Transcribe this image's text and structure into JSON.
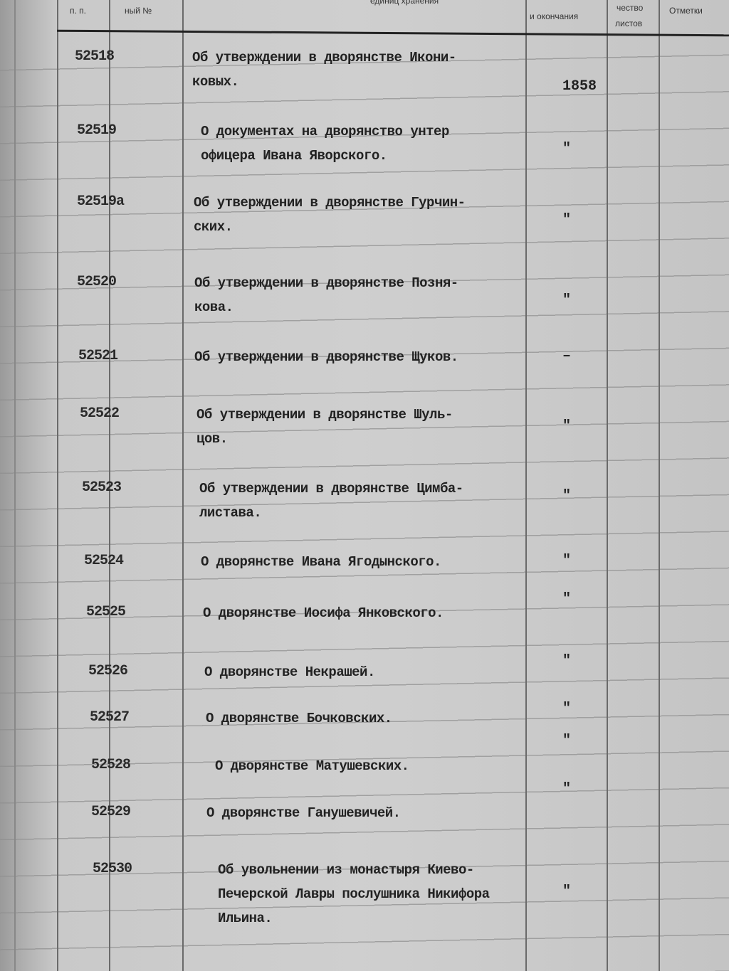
{
  "header": {
    "col_num": "п. п.",
    "col_inventory": "ный №",
    "col_title": "единиц хранения",
    "col_dates": "и окончания",
    "col_sheets_1": "чество",
    "col_sheets_2": "листов",
    "col_notes": "Отметки"
  },
  "entries": [
    {
      "num": "52518",
      "lines": [
        "Об утверждении в дворянстве Икони-",
        "ковых."
      ],
      "date": "1858"
    },
    {
      "num": "52519",
      "lines": [
        "О документах на дворянство унтер",
        "офицера Ивана Яворского."
      ],
      "date": "\""
    },
    {
      "num": "52519а",
      "lines": [
        "Об утверждении в дворянстве Гурчин-",
        "ских."
      ],
      "date": "\""
    },
    {
      "num": "52520",
      "lines": [
        "Об утверждении в дворянстве Позня-",
        "кова."
      ],
      "date": "\""
    },
    {
      "num": "52521",
      "lines": [
        "Об утверждении в дворянстве Щуков."
      ],
      "date": "–"
    },
    {
      "num": "52522",
      "lines": [
        "Об утверждении в дворянстве Шуль-",
        "цов."
      ],
      "date": "\""
    },
    {
      "num": "52523",
      "lines": [
        "Об утверждении в дворянстве Цимба-",
        "листава."
      ],
      "date": "\""
    },
    {
      "num": "52524",
      "lines": [
        "О дворянстве Ивана Ягодынского."
      ],
      "date": "\""
    },
    {
      "num": "52525",
      "lines": [
        "О  дворянстве Иосифа Янковского."
      ],
      "date": "\""
    },
    {
      "num": "52526",
      "lines": [
        "О дворянстве Некрашей."
      ],
      "date": "\""
    },
    {
      "num": "52527",
      "lines": [
        "О дворянстве Бочковских."
      ],
      "date": "\""
    },
    {
      "num": "52528",
      "lines": [
        "О дворянстве Матушевских."
      ],
      "date": "\""
    },
    {
      "num": "52529",
      "lines": [
        "О дворянстве Ганушевичей."
      ],
      "date": "\""
    },
    {
      "num": "52530",
      "lines": [
        "Об увольнении из монастыря Киево-",
        "Печерской Лавры послушника Никифора",
        "Ильина."
      ],
      "date": "\""
    }
  ]
}
